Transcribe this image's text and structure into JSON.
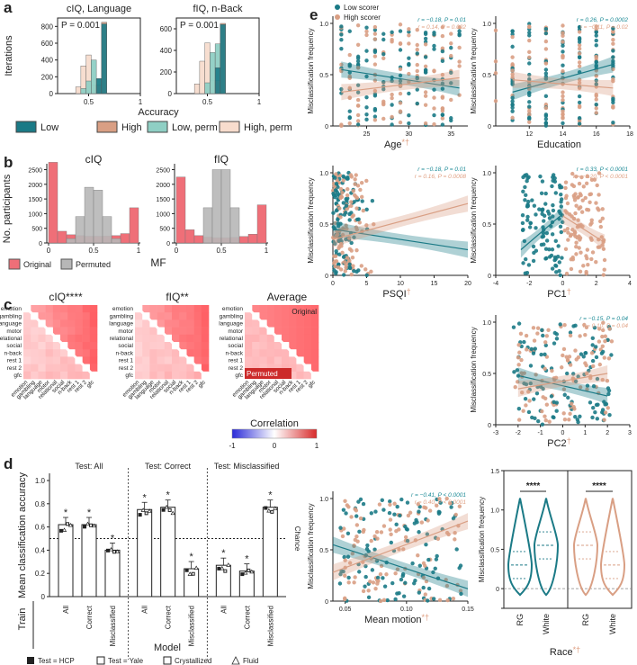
{
  "colors": {
    "low": "#1b7a86",
    "high": "#d99f84",
    "low_perm": "#8fcfc4",
    "high_perm": "#f7dccd",
    "original": "#ef6f78",
    "permuted": "#b7b7b7",
    "teal_text": "#1b8a96",
    "salmon_text": "#e0a184"
  },
  "panel_labels": {
    "a": "a",
    "b": "b",
    "c": "c",
    "d": "d",
    "e": "e"
  },
  "panel_a": {
    "ylabel": "Iterations",
    "xlabel": "Accuracy",
    "legend": [
      "Low",
      "High",
      "Low, perm",
      "High, perm"
    ],
    "plots": [
      {
        "title": "cIQ, Language",
        "p_text": "P = 0.001",
        "yticks": [
          0,
          200,
          400,
          600,
          800
        ],
        "ymax": 900,
        "xticks": [
          "0.5",
          "1"
        ]
      },
      {
        "title": "fIQ, n-Back",
        "p_text": "P = 0.001",
        "yticks": [
          0,
          200,
          400,
          600
        ],
        "ymax": 700,
        "xticks": [
          "0.5",
          "1"
        ]
      }
    ]
  },
  "panel_b": {
    "ylabel": "No. participants",
    "xlabel": "MF",
    "legend": [
      "Original",
      "Permuted"
    ],
    "xticks": [
      "0",
      "0.5",
      "1"
    ],
    "plots": [
      {
        "title": "cIQ",
        "yticks": [
          "0",
          "500",
          "1000",
          "1500",
          "2000",
          "2500"
        ]
      },
      {
        "title": "fIQ",
        "yticks": [
          "0",
          "500",
          "1000",
          "1500",
          "2000",
          "2500"
        ]
      }
    ]
  },
  "panel_c": {
    "titles": [
      "cIQ****",
      "fIQ**",
      "Average"
    ],
    "labels": [
      "emotion",
      "gambling",
      "language",
      "motor",
      "relational",
      "social",
      "n-back",
      "rest 1",
      "rest 2",
      "gfc"
    ],
    "corner_original": "Original",
    "corner_permuted": "Permuted",
    "colorbar_label": "Correlation",
    "colorbar_ticks": [
      "-1",
      "0",
      "1"
    ]
  },
  "panel_d": {
    "ylabel": "Mean classification accuracy",
    "yticks": [
      "0",
      "0.2",
      "0.4",
      "0.6",
      "0.8",
      "1.0"
    ],
    "group_titles": [
      "Test: All",
      "Test: Correct",
      "Test: Misclassified"
    ],
    "bar_labels": [
      "All",
      "Correct",
      "Misclassified"
    ],
    "chance_label": "Chance",
    "train_label": "Train",
    "model_label": "Model",
    "star": "*",
    "legend": [
      "Test = HCP",
      "Test = Yale",
      "Crystallized",
      "Fluid"
    ]
  },
  "panel_e": {
    "legend": [
      "Low scorer",
      "High scorer"
    ],
    "mf_label": "Misclassification frequency",
    "plots": [
      {
        "xlabel": "Age",
        "suffix": "*†",
        "stat_low": "r = −0.18, P = 0.01",
        "stat_high": "r = 0.14, P = 0.002",
        "xticks": [
          "25",
          "30",
          "35"
        ]
      },
      {
        "xlabel": "Education",
        "suffix": "",
        "stat_low": "r = 0.26, P = 0.0002",
        "stat_high": "r = −0.11, P = 0.02",
        "xticks": [
          "12",
          "14",
          "16",
          "18"
        ]
      },
      {
        "xlabel": "PSQI",
        "suffix": "†",
        "stat_low": "r = −0.18, P = 0.01",
        "stat_high": "r = 0.16, P = 0.0008",
        "xticks": [
          "0",
          "5",
          "10",
          "15",
          "20"
        ]
      },
      {
        "xlabel": "PC1",
        "suffix": "†",
        "stat_low": "r = 0.33, P < 0.0001",
        "stat_high": "r = −0.20, P < 0.0001",
        "xticks": [
          "-4",
          "-2",
          "0",
          "2",
          "4"
        ]
      },
      {
        "xlabel": "PC2",
        "suffix": "†",
        "stat_low": "r = −0.15, P = 0.04",
        "stat_high": "r = 0.10, P = 0.04",
        "xticks": [
          "-3",
          "-2",
          "-1",
          "0",
          "1",
          "2",
          "3"
        ]
      },
      {
        "xlabel": "Mean motion",
        "suffix": "*†",
        "stat_low": "r = −0.41, P < 0.0001",
        "stat_high": "r = 0.40, P < 0.0001",
        "xticks": [
          "0.05",
          "0.10",
          "0.15"
        ]
      }
    ],
    "race": {
      "xlabel": "Race",
      "suffix": "*†",
      "categories": [
        "RG",
        "White",
        "RG",
        "White"
      ],
      "sig": "****"
    }
  },
  "chart_data": [
    {
      "type": "bar",
      "title": "cIQ, Language",
      "annotation": "P = 0.001",
      "xlabel": "Accuracy",
      "ylabel": "Iterations",
      "ylim": [
        0,
        900
      ],
      "series": [
        {
          "name": "High, perm",
          "x": [
            0.4,
            0.45,
            0.5,
            0.55
          ],
          "values": [
            80,
            330,
            460,
            100
          ]
        },
        {
          "name": "Low, perm",
          "x": [
            0.45,
            0.5,
            0.55,
            0.6
          ],
          "values": [
            60,
            150,
            400,
            170
          ]
        },
        {
          "name": "High",
          "x": [
            0.6,
            0.65
          ],
          "values": [
            100,
            850
          ]
        },
        {
          "name": "Low",
          "x": [
            0.6,
            0.65
          ],
          "values": [
            180,
            830
          ]
        }
      ]
    },
    {
      "type": "bar",
      "title": "fIQ, n-Back",
      "annotation": "P = 0.001",
      "xlabel": "Accuracy",
      "ylabel": "Iterations",
      "ylim": [
        0,
        700
      ],
      "series": [
        {
          "name": "High, perm",
          "x": [
            0.4,
            0.45,
            0.5,
            0.55
          ],
          "values": [
            90,
            300,
            470,
            120
          ]
        },
        {
          "name": "Low, perm",
          "x": [
            0.5,
            0.55,
            0.6
          ],
          "values": [
            100,
            380,
            460
          ]
        },
        {
          "name": "High",
          "x": [
            0.6,
            0.65
          ],
          "values": [
            120,
            650
          ]
        },
        {
          "name": "Low",
          "x": [
            0.6,
            0.65
          ],
          "values": [
            240,
            640
          ]
        }
      ]
    },
    {
      "type": "bar",
      "title": "cIQ",
      "xlabel": "MF",
      "ylabel": "No. participants",
      "ylim": [
        0,
        2700
      ],
      "bins": [
        0.05,
        0.15,
        0.25,
        0.35,
        0.45,
        0.55,
        0.65,
        0.75,
        0.85,
        0.95
      ],
      "series": [
        {
          "name": "Original",
          "values": [
            2750,
            400,
            280,
            250,
            230,
            230,
            240,
            250,
            320,
            1200
          ]
        },
        {
          "name": "Permuted",
          "values": [
            0,
            0,
            150,
            900,
            1900,
            1800,
            900,
            150,
            0,
            0
          ]
        }
      ]
    },
    {
      "type": "bar",
      "title": "fIQ",
      "xlabel": "MF",
      "ylabel": "No. participants",
      "ylim": [
        0,
        2700
      ],
      "bins": [
        0.05,
        0.15,
        0.25,
        0.35,
        0.45,
        0.55,
        0.65,
        0.75,
        0.85,
        0.95
      ],
      "series": [
        {
          "name": "Original",
          "values": [
            2250,
            450,
            250,
            200,
            180,
            180,
            190,
            220,
            300,
            1300
          ]
        },
        {
          "name": "Permuted",
          "values": [
            0,
            0,
            0,
            1200,
            2500,
            2500,
            1200,
            0,
            0,
            0
          ]
        }
      ]
    },
    {
      "type": "heatmap",
      "title": "cIQ****",
      "labels": [
        "emotion",
        "gambling",
        "language",
        "motor",
        "relational",
        "social",
        "n-back",
        "rest 1",
        "rest 2",
        "gfc"
      ],
      "value_range": [
        -1,
        1
      ]
    },
    {
      "type": "heatmap",
      "title": "fIQ**",
      "labels": [
        "emotion",
        "gambling",
        "language",
        "motor",
        "relational",
        "social",
        "n-back",
        "rest 1",
        "rest 2",
        "gfc"
      ],
      "value_range": [
        -1,
        1
      ]
    },
    {
      "type": "heatmap",
      "title": "Average",
      "labels": [
        "emotion",
        "gambling",
        "language",
        "motor",
        "relational",
        "social",
        "n-back",
        "rest 1",
        "rest 2",
        "gfc"
      ],
      "value_range": [
        -1,
        1
      ]
    },
    {
      "type": "bar",
      "title": "Mean classification accuracy",
      "ylabel": "Mean classification accuracy",
      "ylim": [
        0,
        1.0
      ],
      "chance": 0.5,
      "groups": [
        {
          "test": "Test: All",
          "categories": [
            "All",
            "Correct",
            "Misclassified"
          ],
          "values": [
            0.62,
            0.62,
            0.4
          ]
        },
        {
          "test": "Test: Correct",
          "categories": [
            "All",
            "Correct",
            "Misclassified"
          ],
          "values": [
            0.75,
            0.77,
            0.24
          ]
        },
        {
          "test": "Test: Misclassified",
          "categories": [
            "All",
            "Correct",
            "Misclassified"
          ],
          "values": [
            0.27,
            0.22,
            0.77
          ]
        }
      ]
    },
    {
      "type": "scatter",
      "title": "Age",
      "xlim": [
        21,
        37
      ],
      "ylim": [
        0,
        1
      ],
      "ylabel": "Misclassification frequency",
      "fits": [
        {
          "name": "Low scorer",
          "x": [
            22,
            36
          ],
          "y": [
            0.55,
            0.37
          ]
        },
        {
          "name": "High scorer",
          "x": [
            22,
            36
          ],
          "y": [
            0.33,
            0.47
          ]
        }
      ]
    },
    {
      "type": "scatter",
      "title": "Education",
      "xlim": [
        10,
        18
      ],
      "ylim": [
        0,
        1
      ],
      "ylabel": "Misclassification frequency",
      "fits": [
        {
          "name": "Low scorer",
          "x": [
            11,
            17
          ],
          "y": [
            0.33,
            0.6
          ]
        },
        {
          "name": "High scorer",
          "x": [
            11,
            17
          ],
          "y": [
            0.45,
            0.37
          ]
        }
      ]
    },
    {
      "type": "scatter",
      "title": "PSQI",
      "xlim": [
        0,
        20
      ],
      "ylim": [
        0,
        1
      ],
      "ylabel": "Misclassification frequency",
      "fits": [
        {
          "name": "Low scorer",
          "x": [
            0,
            20
          ],
          "y": [
            0.45,
            0.25
          ]
        },
        {
          "name": "High scorer",
          "x": [
            0,
            20
          ],
          "y": [
            0.35,
            0.7
          ]
        }
      ]
    },
    {
      "type": "scatter",
      "title": "PC1",
      "xlim": [
        -4,
        4
      ],
      "ylim": [
        0,
        1
      ],
      "ylabel": "Misclassification frequency",
      "fits": [
        {
          "name": "Low scorer",
          "x": [
            -2.5,
            0
          ],
          "y": [
            0.25,
            0.6
          ]
        },
        {
          "name": "High scorer",
          "x": [
            0,
            2.5
          ],
          "y": [
            0.58,
            0.32
          ]
        }
      ]
    },
    {
      "type": "scatter",
      "title": "PC2",
      "xlim": [
        -3,
        3
      ],
      "ylim": [
        0,
        1
      ],
      "ylabel": "Misclassification frequency",
      "fits": [
        {
          "name": "Low scorer",
          "x": [
            -2,
            2
          ],
          "y": [
            0.48,
            0.28
          ]
        },
        {
          "name": "High scorer",
          "x": [
            -2,
            2
          ],
          "y": [
            0.35,
            0.5
          ]
        }
      ]
    },
    {
      "type": "scatter",
      "title": "Mean motion",
      "xlim": [
        0.04,
        0.15
      ],
      "ylim": [
        0,
        1
      ],
      "ylabel": "Misclassification frequency",
      "fits": [
        {
          "name": "Low scorer",
          "x": [
            0.04,
            0.15
          ],
          "y": [
            0.55,
            0.12
          ]
        },
        {
          "name": "High scorer",
          "x": [
            0.04,
            0.15
          ],
          "y": [
            0.28,
            0.78
          ]
        }
      ]
    },
    {
      "type": "violin",
      "title": "Race",
      "ylabel": "Misclassification frequency",
      "ylim": [
        -0.25,
        1.5
      ],
      "categories": [
        "RG",
        "White",
        "RG",
        "White"
      ],
      "medians": [
        0.3,
        0.55,
        0.55,
        0.3
      ],
      "significance": [
        "****",
        "****"
      ]
    }
  ]
}
